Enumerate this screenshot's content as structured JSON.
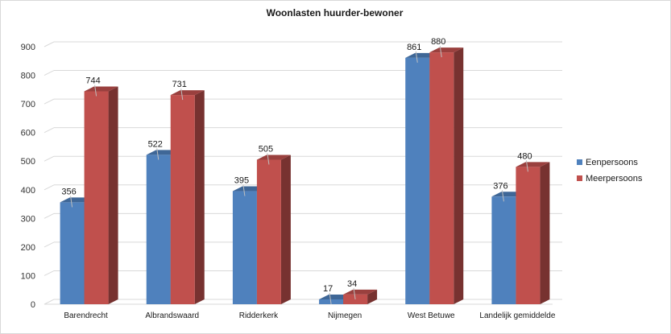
{
  "chart_data": {
    "type": "bar",
    "title": "Woonlasten huurder-bewoner",
    "categories": [
      "Barendrecht",
      "Albrandswaard",
      "Ridderkerk",
      "Nijmegen",
      "West Betuwe",
      "Landelijk gemiddelde"
    ],
    "series": [
      {
        "name": "Eenpersoons",
        "values": [
          356,
          522,
          395,
          17,
          861,
          376
        ],
        "color": "#4f81bd"
      },
      {
        "name": "Meerpersoons",
        "values": [
          744,
          731,
          505,
          34,
          880,
          480
        ],
        "color": "#c0504d"
      }
    ],
    "xlabel": "",
    "ylabel": "",
    "ylim": [
      0,
      900
    ],
    "yticks": [
      "0",
      "100",
      "200",
      "300",
      "400",
      "500",
      "600",
      "700",
      "800",
      "900"
    ],
    "grid": true,
    "legend": "right",
    "style": "3d-column"
  }
}
